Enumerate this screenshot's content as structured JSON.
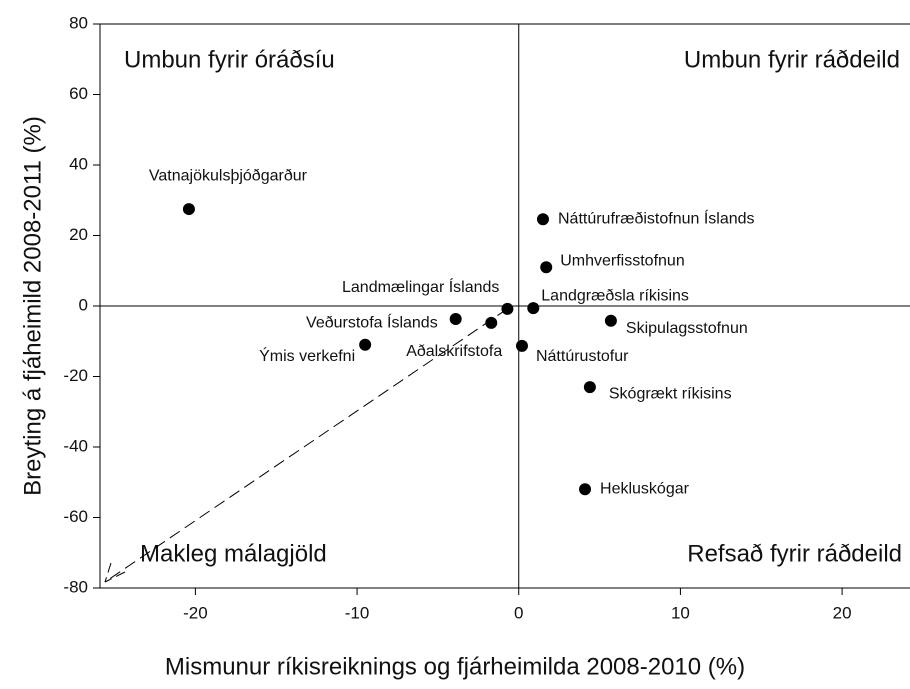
{
  "chart_data": {
    "type": "scatter",
    "x_label": "Mismunur ríkisreiknings og fjárheimilda 2008-2010 (%)",
    "y_label": "Breyting á fjáheimild 2008-2011 (%)",
    "labels": [
      "Vatnajökulsþjóðgarður",
      "Náttúrufræðistofnun Íslands",
      "Umhverfisstofnun",
      "Landgræðsla ríkisins",
      "Landmælingar Íslands",
      "Veðurstofa Íslands",
      "Aðalskrifstofa",
      "Ýmis verkefni",
      "Náttúrustofur",
      "Skipulagsstofnun",
      "Skógrækt ríkisins",
      "Hekluskógar"
    ],
    "x": [
      -20.4,
      1.5,
      1.7,
      0.9,
      -0.7,
      -3.9,
      -1.7,
      -9.5,
      0.2,
      5.7,
      4.4,
      4.1
    ],
    "y": [
      27.5,
      24.6,
      11,
      -0.6,
      -0.8,
      -3.7,
      -4.8,
      -11,
      -11.3,
      -4.2,
      -23,
      -52
    ],
    "color": "#000000",
    "annotations": [
      "Umbun fyrir óráðsíu",
      "Umbun fyrir ráðdeild",
      "Makleg málagjöld",
      "Refsað fyrir ráðdeild"
    ],
    "xlim": [
      -25.9,
      24.2
    ],
    "xticks": [
      -20,
      -10,
      0,
      10,
      20
    ],
    "ylim": [
      -80,
      80
    ],
    "yticks": [
      -80,
      -60,
      -40,
      -20,
      0,
      20,
      40,
      60,
      80
    ]
  }
}
